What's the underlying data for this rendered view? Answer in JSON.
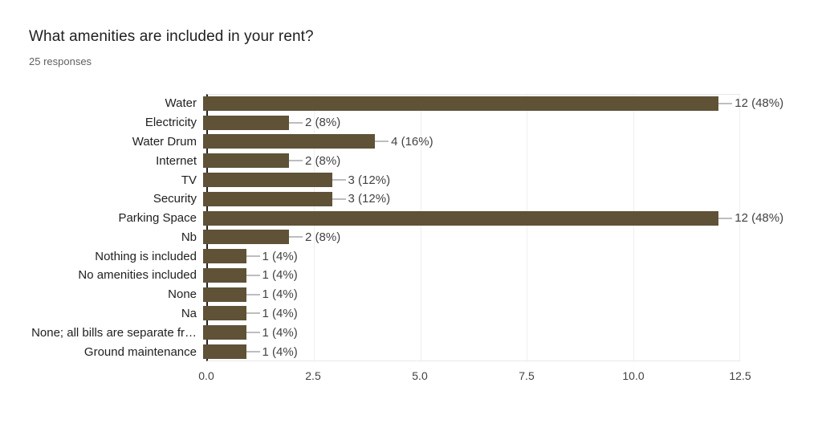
{
  "header": {
    "title": "What amenities are included in your rent?",
    "subtitle": "25 responses"
  },
  "chart_data": {
    "type": "bar",
    "orientation": "horizontal",
    "title": "What amenities are included in your rent?",
    "subtitle": "25 responses",
    "categories": [
      "Water",
      "Electricity",
      "Water Drum",
      "Internet",
      "TV",
      "Security",
      "Parking Space",
      "Nb",
      "Nothing is included",
      "No amenities included",
      "None",
      "Na",
      "None; all bills are separate fr…",
      "Ground maintenance"
    ],
    "values": [
      12,
      2,
      4,
      2,
      3,
      3,
      12,
      2,
      1,
      1,
      1,
      1,
      1,
      1
    ],
    "value_labels": [
      "12 (48%)",
      "2 (8%)",
      "4 (16%)",
      "2 (8%)",
      "3 (12%)",
      "3 (12%)",
      "12 (48%)",
      "2 (8%)",
      "1 (4%)",
      "1 (4%)",
      "1 (4%)",
      "1 (4%)",
      "1 (4%)",
      "1 (4%)"
    ],
    "xlim": [
      0,
      12.5
    ],
    "xticks": [
      0,
      2.5,
      5,
      7.5,
      10,
      12.5
    ],
    "xtick_labels": [
      "0.0",
      "2.5",
      "5.0",
      "7.5",
      "10.0",
      "12.5"
    ],
    "grid": true,
    "legend": false,
    "colors": {
      "bar": "#5f5237",
      "axis_line": "#212121",
      "gridline": "#efefef",
      "plot_border": "#e8e8e8",
      "title_text": "#212121",
      "subtitle_text": "#616161",
      "tick_text": "#424242",
      "value_text": "#424242",
      "connector": "#bdbdbd"
    }
  }
}
